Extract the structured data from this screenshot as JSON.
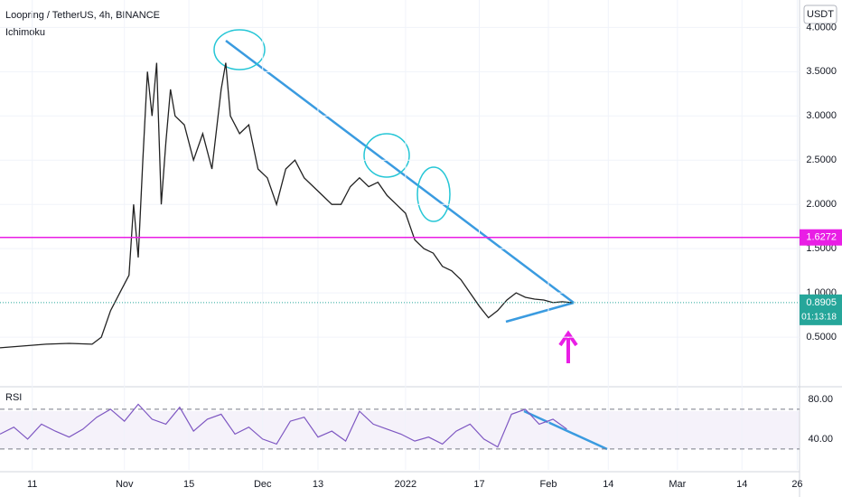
{
  "chart_data": {
    "type": "line",
    "title": "Loopring / TetherUS, 4h, BINANCE",
    "indicator": "Ichimoku",
    "currency": "USDT",
    "color": "#222222",
    "x": [
      0,
      5,
      10,
      15,
      20,
      22,
      24,
      26,
      28,
      29,
      30,
      31,
      32,
      33,
      34,
      35,
      36,
      37,
      38,
      40,
      42,
      44,
      46,
      48,
      49,
      50,
      52,
      54,
      56,
      58,
      60,
      62,
      64,
      66,
      68,
      70,
      72,
      74,
      76,
      78,
      80,
      82,
      84,
      86,
      88,
      90,
      92,
      94,
      96,
      98,
      100,
      102,
      104,
      106,
      108,
      110,
      112,
      114,
      116,
      118,
      120,
      122,
      124
    ],
    "values": [
      0.38,
      0.4,
      0.42,
      0.43,
      0.42,
      0.5,
      0.8,
      1.0,
      1.2,
      2.0,
      1.4,
      2.5,
      3.5,
      3.0,
      3.6,
      2.0,
      2.7,
      3.3,
      3.0,
      2.9,
      2.5,
      2.8,
      2.4,
      3.3,
      3.6,
      3.0,
      2.8,
      2.9,
      2.4,
      2.3,
      2.0,
      2.4,
      2.5,
      2.3,
      2.2,
      2.1,
      2.0,
      2.0,
      2.2,
      2.3,
      2.2,
      2.25,
      2.1,
      2.0,
      1.9,
      1.6,
      1.5,
      1.45,
      1.3,
      1.25,
      1.15,
      1.0,
      0.85,
      0.72,
      0.8,
      0.92,
      1.0,
      0.95,
      0.93,
      0.92,
      0.89,
      0.9,
      0.8905
    ],
    "xlim": [
      0,
      173.5
    ],
    "xticks": [
      {
        "value": 7,
        "label": "11"
      },
      {
        "value": 27,
        "label": "Nov"
      },
      {
        "value": 41,
        "label": "15"
      },
      {
        "value": 57,
        "label": "Dec"
      },
      {
        "value": 69,
        "label": "13"
      },
      {
        "value": 88,
        "label": "2022"
      },
      {
        "value": 104,
        "label": "17"
      },
      {
        "value": 119,
        "label": "Feb"
      },
      {
        "value": 132,
        "label": "14"
      },
      {
        "value": 147,
        "label": "Mar"
      },
      {
        "value": 161,
        "label": "14"
      },
      {
        "value": 173,
        "label": "26"
      }
    ],
    "ylim": [
      -0.03,
      4.31
    ],
    "yticks": [
      {
        "value": 0.5,
        "label": "0.5000"
      },
      {
        "value": 1,
        "label": "1.0000"
      },
      {
        "value": 1.5,
        "label": "1.5000"
      },
      {
        "value": 2,
        "label": "2.0000"
      },
      {
        "value": 2.5,
        "label": "2.5000"
      },
      {
        "value": 3,
        "label": "3.0000"
      },
      {
        "value": 3.5,
        "label": "3.5000"
      },
      {
        "value": 4,
        "label": "4.0000"
      }
    ],
    "hline": {
      "value": 1.6272,
      "color": "#e91ee5"
    },
    "last_price": 0.8905,
    "countdown": "01:13:18",
    "rsi": {
      "name": "RSI",
      "color": "#7e57c2",
      "x": [
        0,
        3,
        6,
        9,
        12,
        15,
        18,
        21,
        24,
        27,
        30,
        33,
        36,
        39,
        42,
        45,
        48,
        51,
        54,
        57,
        60,
        63,
        66,
        69,
        72,
        75,
        78,
        81,
        84,
        87,
        90,
        93,
        96,
        99,
        102,
        105,
        108,
        111,
        114,
        117,
        120,
        123
      ],
      "values": [
        45,
        52,
        40,
        55,
        48,
        42,
        50,
        62,
        70,
        58,
        75,
        60,
        55,
        72,
        48,
        60,
        65,
        45,
        52,
        40,
        35,
        58,
        62,
        42,
        48,
        38,
        68,
        55,
        50,
        45,
        38,
        42,
        35,
        48,
        55,
        40,
        32,
        65,
        70,
        55,
        60,
        50
      ],
      "ylim": [
        9,
        89
      ],
      "yticks": [
        {
          "value": 80,
          "label": "80.00"
        },
        {
          "value": 40,
          "label": "40.00"
        }
      ],
      "bands": [
        70,
        30
      ]
    }
  }
}
